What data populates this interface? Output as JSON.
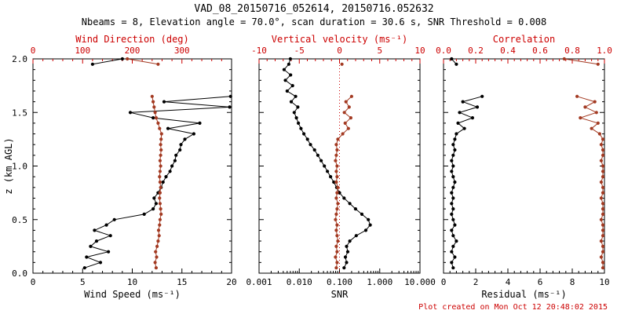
{
  "footer_note": "Plot created on Mon Oct 12 20:48:02 2015",
  "colors": {
    "foreground": "#000000",
    "axis_red": "#cc0000",
    "series_red": "#a33a22",
    "background": "#ffffff"
  },
  "chart_data": {
    "type": "scatter",
    "title": "VAD_08_20150716_052614, 20150716.052632",
    "subtitle": "Nbeams = 8, Elevation angle = 70.0°, scan duration = 30.6 s, SNR Threshold = 0.008",
    "y_axis": {
      "label": "z (km AGL)",
      "range": [
        0,
        2
      ],
      "ticks": [
        0,
        0.5,
        1,
        1.5,
        2
      ],
      "tick_labels": [
        "0.0",
        "0.5",
        "1.0",
        "1.5",
        "2.0"
      ],
      "minor_step": 0.1
    },
    "heights_km": [
      0.05,
      0.1,
      0.15,
      0.2,
      0.25,
      0.3,
      0.35,
      0.4,
      0.45,
      0.5,
      0.55,
      0.6,
      0.65,
      0.7,
      0.75,
      0.8,
      0.85,
      0.9,
      0.95,
      1.0,
      1.05,
      1.1,
      1.15,
      1.2,
      1.25,
      1.3,
      1.35,
      1.4,
      1.45,
      1.5,
      1.55,
      1.6,
      1.65,
      1.7,
      1.75,
      1.8,
      1.85,
      1.9,
      1.95,
      2.0
    ],
    "panels": [
      {
        "id": "wind",
        "bottom_axis": {
          "label": "Wind Speed (ms⁻¹)",
          "scale": "linear",
          "range": [
            0,
            20
          ],
          "ticks": [
            0,
            5,
            10,
            15,
            20
          ],
          "tick_labels": [
            "0",
            "5",
            "10",
            "15",
            "20"
          ],
          "color": "#000000"
        },
        "top_axis": {
          "label": "Wind Direction (deg)",
          "scale": "linear",
          "range": [
            0,
            400
          ],
          "ticks": [
            0,
            100,
            200,
            300
          ],
          "tick_labels": [
            "0",
            "100",
            "200",
            "300"
          ],
          "color": "#cc0000"
        },
        "series": [
          {
            "name": "wind-speed",
            "axis": "bottom",
            "color": "#000000",
            "line": true,
            "values": [
              5.2,
              6.8,
              5.4,
              7.6,
              5.8,
              6.4,
              7.8,
              6.2,
              7.4,
              8.2,
              11.2,
              12.1,
              12.4,
              12.2,
              12.6,
              12.9,
              13.1,
              13.4,
              13.8,
              14.0,
              14.3,
              14.4,
              14.8,
              14.9,
              15.3,
              16.2,
              13.6,
              16.8,
              12.1,
              9.8,
              19.8,
              13.2,
              19.9,
              null,
              null,
              null,
              null,
              null,
              6.0,
              9.0
            ]
          },
          {
            "name": "wind-direction",
            "axis": "top",
            "color": "#a33a22",
            "line": true,
            "values": [
              248,
              246,
              249,
              247,
              250,
              252,
              254,
              253,
              255,
              256,
              258,
              257,
              256,
              255,
              256,
              257,
              256,
              255,
              256,
              257,
              256,
              257,
              258,
              257,
              258,
              259,
              255,
              252,
              248,
              246,
              244,
              242,
              240,
              null,
              null,
              null,
              null,
              null,
              252,
              190
            ]
          }
        ]
      },
      {
        "id": "snr",
        "bottom_axis": {
          "label": "SNR",
          "scale": "log",
          "range": [
            0.001,
            10
          ],
          "ticks": [
            0.001,
            0.01,
            0.1,
            1,
            10
          ],
          "tick_labels": [
            "0.001",
            "0.010",
            "0.100",
            "1.000",
            "10.000"
          ],
          "color": "#000000"
        },
        "top_axis": {
          "label": "Vertical velocity (ms⁻¹)",
          "scale": "linear",
          "range": [
            -10,
            10
          ],
          "ticks": [
            -10,
            -5,
            0,
            5,
            10
          ],
          "tick_labels": [
            "-10",
            "-5",
            "0",
            "5",
            "10"
          ],
          "color": "#cc0000"
        },
        "ref_line": {
          "axis": "top",
          "value": 0,
          "color": "#cc0000",
          "style": "dotted"
        },
        "series": [
          {
            "name": "snr",
            "axis": "bottom",
            "color": "#000000",
            "line": true,
            "values": [
              0.13,
              0.15,
              0.14,
              0.16,
              0.15,
              0.18,
              0.26,
              0.45,
              0.58,
              0.52,
              0.36,
              0.25,
              0.18,
              0.13,
              0.1,
              0.085,
              0.072,
              0.06,
              0.05,
              0.042,
              0.035,
              0.029,
              0.024,
              0.019,
              0.016,
              0.013,
              0.011,
              0.0095,
              0.0085,
              0.0075,
              0.0092,
              0.0063,
              0.0081,
              0.005,
              0.0068,
              0.0045,
              0.0061,
              0.0042,
              0.0055,
              0.006
            ]
          },
          {
            "name": "vertical-velocity",
            "axis": "top",
            "color": "#a33a22",
            "line": true,
            "values": [
              -0.4,
              -0.3,
              -0.5,
              -0.3,
              -0.4,
              -0.2,
              -0.3,
              -0.4,
              -0.3,
              -0.5,
              -0.4,
              -0.3,
              -0.2,
              -0.4,
              -0.3,
              -0.2,
              -0.4,
              -0.3,
              -0.4,
              -0.3,
              -0.5,
              -0.4,
              -0.3,
              -0.4,
              -0.2,
              0.4,
              1.1,
              0.7,
              1.4,
              0.6,
              1.2,
              0.8,
              1.5,
              null,
              null,
              null,
              null,
              null,
              0.3,
              null
            ]
          }
        ]
      },
      {
        "id": "residual",
        "bottom_axis": {
          "label": "Residual (ms⁻¹)",
          "scale": "linear",
          "range": [
            0,
            10
          ],
          "ticks": [
            0,
            2,
            4,
            6,
            8,
            10
          ],
          "tick_labels": [
            "0",
            "2",
            "4",
            "6",
            "8",
            "10"
          ],
          "color": "#000000"
        },
        "top_axis": {
          "label": "Correlation",
          "scale": "linear",
          "range": [
            0,
            1
          ],
          "ticks": [
            0,
            0.2,
            0.4,
            0.6,
            0.8,
            1
          ],
          "tick_labels": [
            "0.0",
            "0.2",
            "0.4",
            "0.6",
            "0.8",
            "1.0"
          ],
          "color": "#cc0000"
        },
        "series": [
          {
            "name": "residual",
            "axis": "bottom",
            "color": "#000000",
            "line": true,
            "values": [
              0.6,
              0.5,
              0.7,
              0.5,
              0.6,
              0.8,
              0.6,
              0.5,
              0.7,
              0.6,
              0.5,
              0.6,
              0.5,
              0.6,
              0.5,
              0.6,
              0.7,
              0.6,
              0.5,
              0.6,
              0.5,
              0.6,
              0.7,
              0.6,
              0.7,
              0.8,
              1.3,
              0.9,
              1.8,
              1.0,
              2.1,
              1.2,
              2.4,
              null,
              null,
              null,
              null,
              null,
              0.8,
              0.5
            ]
          },
          {
            "name": "correlation",
            "axis": "top",
            "color": "#a33a22",
            "line": true,
            "values": [
              0.99,
              0.99,
              0.98,
              0.99,
              0.99,
              0.98,
              0.99,
              0.99,
              0.99,
              0.98,
              0.99,
              0.99,
              0.99,
              0.98,
              0.99,
              0.99,
              0.98,
              0.99,
              0.99,
              0.99,
              0.98,
              0.99,
              0.99,
              0.98,
              0.99,
              0.97,
              0.92,
              0.96,
              0.85,
              0.95,
              0.88,
              0.94,
              0.83,
              null,
              null,
              null,
              null,
              null,
              0.96,
              0.75
            ]
          }
        ]
      }
    ]
  }
}
